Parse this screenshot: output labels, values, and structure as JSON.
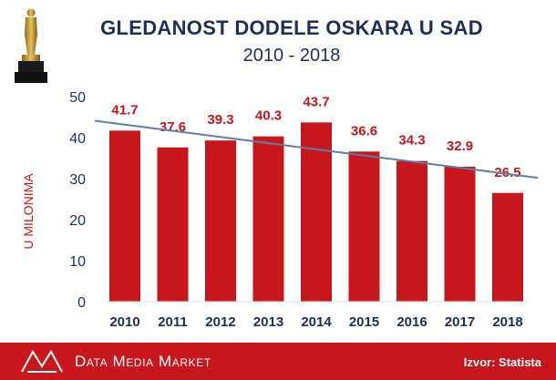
{
  "header": {
    "title": "GLEDANOST DODELE OSKARA U SAD",
    "subtitle": "2010 - 2018",
    "logo_icon": "oscar-statuette-icon"
  },
  "chart_data": {
    "type": "bar",
    "categories": [
      "2010",
      "2011",
      "2012",
      "2013",
      "2014",
      "2015",
      "2016",
      "2017",
      "2018"
    ],
    "values": [
      41.7,
      37.6,
      39.3,
      40.3,
      43.7,
      36.6,
      34.3,
      32.9,
      26.5
    ],
    "value_labels": [
      "41.7",
      "37.6",
      "39.3",
      "40.3",
      "43.7",
      "36.6",
      "34.3",
      "32.9",
      "26.5"
    ],
    "title": "GLEDANOST DODELE OSKARA U SAD",
    "subtitle": "2010 - 2018",
    "xlabel": "",
    "ylabel": "U MILONIMA",
    "ylim": [
      0,
      50
    ],
    "yticks": [
      0,
      10,
      20,
      30,
      40,
      50
    ],
    "grid": false,
    "trendline": {
      "type": "linear",
      "start_value": 44.1,
      "end_value": 30.2
    },
    "colors": {
      "bar": "#c8161d",
      "value_label": "#c8161d",
      "trendline": "#5b7fa6",
      "axis_text": "#1f2d5a",
      "ylabel": "#c8161d"
    }
  },
  "footer": {
    "brand": "Data Media Market",
    "source": "Izvor: Statista",
    "logo_icon": "data-media-market-logo-icon",
    "background": "#c8161d"
  }
}
